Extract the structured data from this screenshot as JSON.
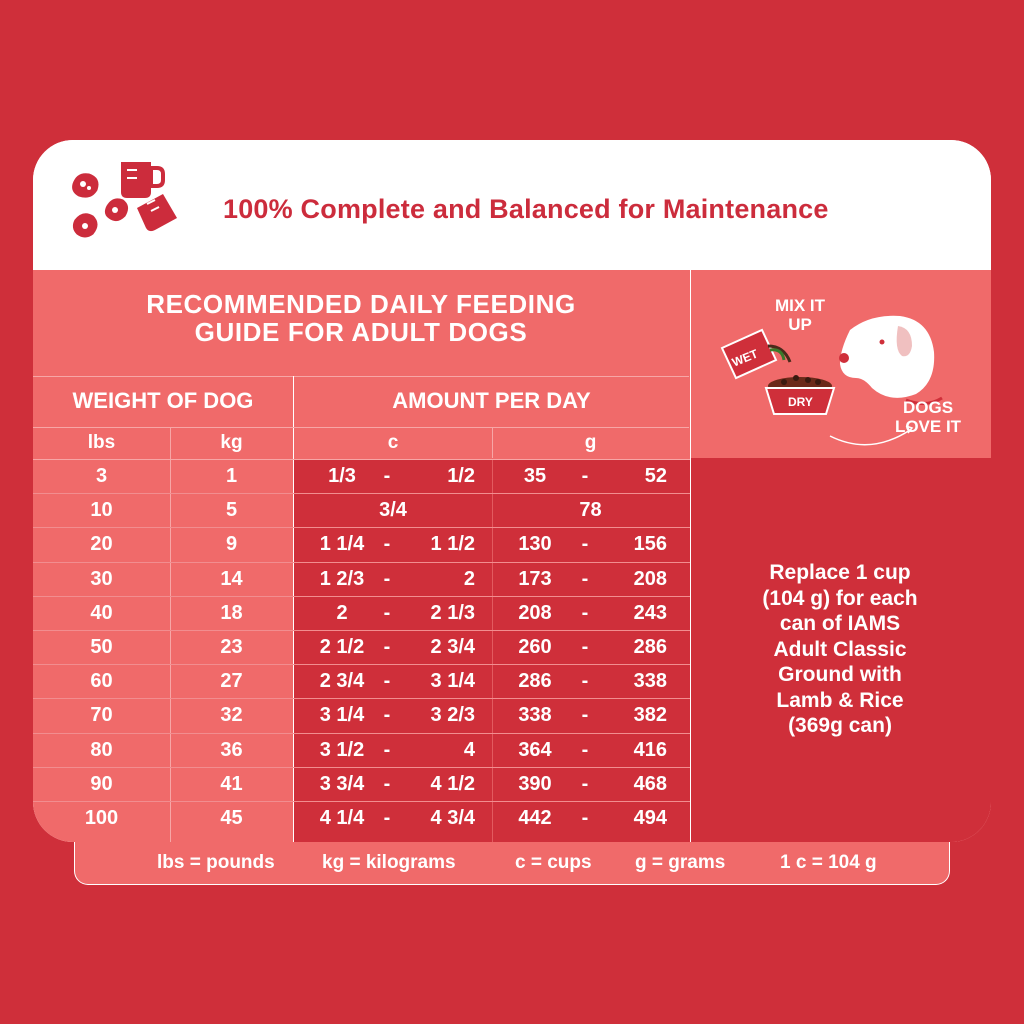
{
  "header": {
    "title": "100% Complete and Balanced for Maintenance",
    "icon": "food-and-measuring-cup-icon"
  },
  "guide": {
    "title_line1": "RECOMMENDED DAILY FEEDING",
    "title_line2": "GUIDE FOR ADULT DOGS"
  },
  "table": {
    "weight_header": "WEIGHT OF DOG",
    "amount_header": "AMOUNT PER DAY",
    "sub_headers": [
      "lbs",
      "kg",
      "c",
      "g"
    ],
    "rows": [
      {
        "lbs": "3",
        "kg": "1",
        "c_from": "1/3",
        "c_to": "1/2",
        "g_from": "35",
        "g_to": "52"
      },
      {
        "lbs": "10",
        "kg": "5",
        "c_single": "3/4",
        "g_single": "78"
      },
      {
        "lbs": "20",
        "kg": "9",
        "c_from": "1 1/4",
        "c_to": "1 1/2",
        "g_from": "130",
        "g_to": "156"
      },
      {
        "lbs": "30",
        "kg": "14",
        "c_from": "1 2/3",
        "c_to": "2",
        "g_from": "173",
        "g_to": "208"
      },
      {
        "lbs": "40",
        "kg": "18",
        "c_from": "2",
        "c_to": "2 1/3",
        "g_from": "208",
        "g_to": "243"
      },
      {
        "lbs": "50",
        "kg": "23",
        "c_from": "2 1/2",
        "c_to": "2 3/4",
        "g_from": "260",
        "g_to": "286"
      },
      {
        "lbs": "60",
        "kg": "27",
        "c_from": "2 3/4",
        "c_to": "3 1/4",
        "g_from": "286",
        "g_to": "338"
      },
      {
        "lbs": "70",
        "kg": "32",
        "c_from": "3 1/4",
        "c_to": "3 2/3",
        "g_from": "338",
        "g_to": "382"
      },
      {
        "lbs": "80",
        "kg": "36",
        "c_from": "3 1/2",
        "c_to": "4",
        "g_from": "364",
        "g_to": "416"
      },
      {
        "lbs": "90",
        "kg": "41",
        "c_from": "3 3/4",
        "c_to": "4 1/2",
        "g_from": "390",
        "g_to": "468"
      },
      {
        "lbs": "100",
        "kg": "45",
        "c_from": "4 1/4",
        "c_to": "4 3/4",
        "g_from": "442",
        "g_to": "494"
      }
    ],
    "dash": "-"
  },
  "mix": {
    "mix_line1": "MIX IT",
    "mix_line2": "UP",
    "wet_label": "WET",
    "dry_label": "DRY",
    "dogs_line1": "DOGS",
    "dogs_line2": "LOVE IT"
  },
  "note": {
    "line1": "Replace 1 cup",
    "line2": "(104 g) for each",
    "line3": "can of IAMS",
    "line4": "Adult Classic",
    "line5": "Ground with",
    "line6": "Lamb & Rice",
    "line7": "(369g can)"
  },
  "legend": {
    "lbs": "lbs = pounds",
    "kg": "kg = kilograms",
    "c": "c = cups",
    "g": "g = grams",
    "cup": "1 c = 104 g"
  },
  "colors": {
    "background": "#cf2f3a",
    "panel": "#f06a6a",
    "title_red": "#cc2c3c"
  }
}
